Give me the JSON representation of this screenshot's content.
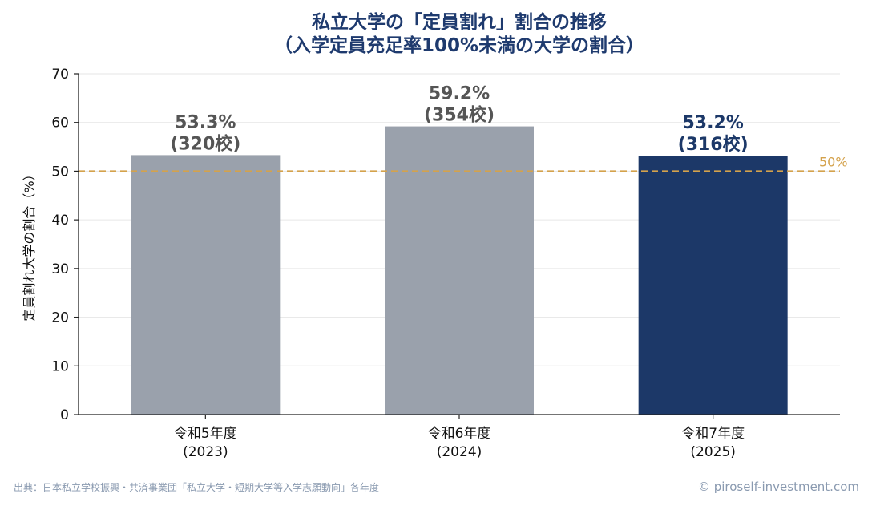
{
  "chart_data": {
    "type": "bar",
    "title": [
      "私立大学の「定員割れ」割合の推移",
      "（入学定員充足率100%未満の大学の割合）"
    ],
    "ylabel": "定員割れ大学の割合（%）",
    "ylim": [
      0,
      70
    ],
    "yticks": [
      0,
      10,
      20,
      30,
      40,
      50,
      60,
      70
    ],
    "grid": true,
    "categories": [
      [
        "令和5年度",
        "(2023)"
      ],
      [
        "令和6年度",
        "(2024)"
      ],
      [
        "令和7年度",
        "(2025)"
      ]
    ],
    "values": [
      53.3,
      59.2,
      53.2
    ],
    "value_labels": [
      [
        "53.3%",
        "(320校)"
      ],
      [
        "59.2%",
        "(354校)"
      ],
      [
        "53.2%",
        "(316校)"
      ]
    ],
    "bar_colors": [
      "#9aa1ac",
      "#9aa1ac",
      "#1c3868"
    ],
    "label_colors": [
      "#555555",
      "#555555",
      "#1c3868"
    ],
    "reference_line": {
      "value": 50,
      "label": "50%",
      "color": "#d4a24c"
    }
  },
  "footer": {
    "source": "出典：日本私立学校振興・共済事業団「私立大学・短期大学等入学志願動向」各年度",
    "credit": "© piroself-investment.com"
  }
}
